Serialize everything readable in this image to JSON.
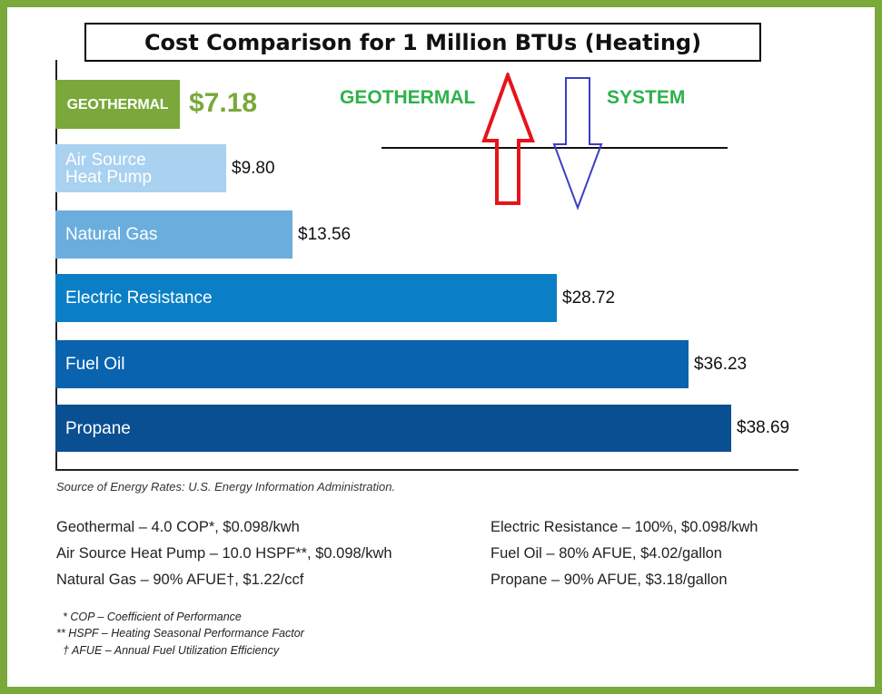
{
  "chart_data": {
    "type": "bar",
    "orientation": "horizontal",
    "title": "Cost Comparison for 1 Million BTUs (Heating)",
    "categories": [
      "GEOTHERMAL",
      "Air Source Heat Pump",
      "Natural Gas",
      "Electric Resistance",
      "Fuel Oil",
      "Propane"
    ],
    "values": [
      7.18,
      9.8,
      13.56,
      28.72,
      36.23,
      38.69
    ],
    "value_labels": [
      "$7.18",
      "$9.80",
      "$13.56",
      "$28.72",
      "$36.23",
      "$38.69"
    ],
    "bar_colors": [
      "#7aa83a",
      "#a9d1f0",
      "#6baedd",
      "#0a7fc6",
      "#0a63ae",
      "#0b4f93"
    ],
    "xlabel": "",
    "ylabel": "",
    "xlim": [
      0,
      38.69
    ],
    "grid": false,
    "legend": "none"
  },
  "annotations": {
    "left_text": "GEOTHERMAL",
    "right_text": "SYSTEM",
    "up_arrow_color": "#e5141b",
    "down_arrow_color": "#3b3fc4"
  },
  "source": "Source of Energy Rates: U.S. Energy Information Administration.",
  "notes_left": [
    "Geothermal – 4.0 COP*, $0.098/kwh",
    "Air Source Heat Pump – 10.0 HSPF**, $0.098/kwh",
    "Natural Gas – 90% AFUE†, $1.22/ccf"
  ],
  "notes_right": [
    "Electric Resistance – 100%, $0.098/kwh",
    "Fuel Oil – 80% AFUE, $4.02/gallon",
    "Propane – 90% AFUE, $3.18/gallon"
  ],
  "footnotes": [
    "* COP – Coefficient of Performance",
    "** HSPF – Heating Seasonal Performance Factor",
    "† AFUE – Annual Fuel Utilization Efficiency"
  ],
  "colors": {
    "border": "#7aa83a",
    "accent_green": "#7aa83a",
    "annotation_green": "#2db24a"
  }
}
